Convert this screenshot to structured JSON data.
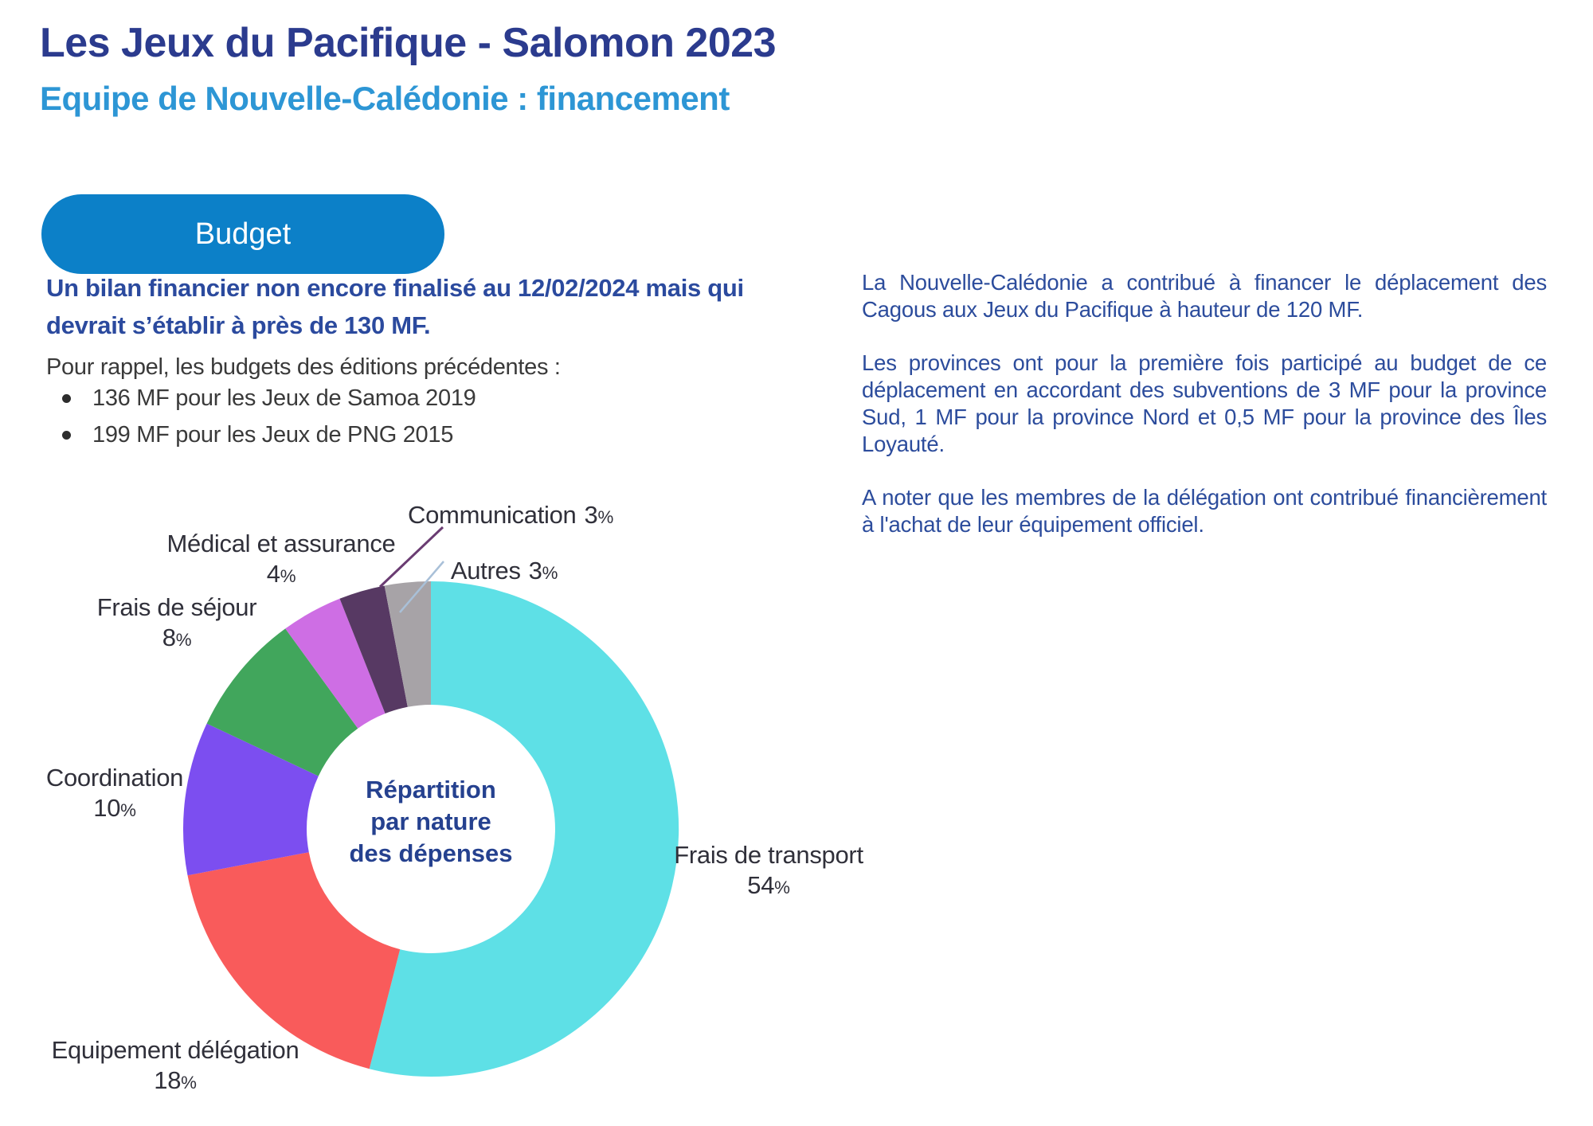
{
  "header": {
    "title": "Les Jeux du Pacifique - Salomon 2023",
    "subtitle": "Equipe de Nouvelle-Calédonie : financement"
  },
  "budget_button": {
    "label": "Budget"
  },
  "left_panel": {
    "intro": "Un bilan financier non encore finalisé au 12/02/2024 mais qui devrait s’établir à près de 130 MF.",
    "recall_heading": "Pour rappel, les budgets des éditions précédentes :",
    "recall_items": [
      "136 MF pour les Jeux de Samoa 2019",
      "199 MF pour les Jeux de PNG 2015"
    ]
  },
  "right_panel": {
    "paragraphs": [
      "La Nouvelle-Calédonie a contribué à financer le déplacement des Cagous aux Jeux du Pacifique à hauteur de 120 MF.",
      "Les provinces ont pour la première fois participé au budget de ce déplacement en accordant des subventions de 3 MF pour la province Sud, 1 MF pour la province Nord et 0,5 MF pour la province des Îles Loyauté.",
      "A noter que les membres de la délégation ont contribué financièrement à l'achat de leur équipement officiel."
    ]
  },
  "chart_data": {
    "type": "pie",
    "variant": "donut",
    "title": "Répartition par nature des dépenses",
    "center_label": "Répartition\npar nature\ndes dépenses",
    "units": "%",
    "percent_suffix": "%",
    "start_angle_deg": 0,
    "direction": "clockwise",
    "inner_radius_ratio": 0.5,
    "legend_position": "outside-labels",
    "slices": [
      {
        "label": "Frais de transport",
        "value": 54,
        "color": "#5ee0e6"
      },
      {
        "label": "Equipement délégation",
        "value": 18,
        "color": "#f95b5b"
      },
      {
        "label": "Coordination",
        "value": 10,
        "color": "#7c4ef0"
      },
      {
        "label": "Frais de séjour",
        "value": 8,
        "color": "#41a65c"
      },
      {
        "label": "Médical et assurance",
        "value": 4,
        "color": "#ce6ee4"
      },
      {
        "label": "Communication",
        "value": 3,
        "color": "#573963"
      },
      {
        "label": "Autres",
        "value": 3,
        "color": "#a7a3a7"
      }
    ],
    "leader_lines": {
      "communication_color": "#6a3c72",
      "autres_color": "#a9c0d8"
    }
  }
}
